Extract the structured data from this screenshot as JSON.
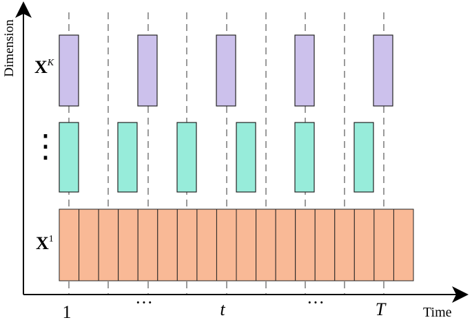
{
  "axes": {
    "y_label": "Dimension",
    "x_label": "Time"
  },
  "time_ticks": [
    "1",
    "···",
    "t",
    "···",
    "T"
  ],
  "rows": {
    "top": {
      "base": "X",
      "superscript": "K",
      "color": "#ccc1ec",
      "block_count": 5
    },
    "middle": {
      "label": "⋮",
      "color": "#97ecda",
      "block_count": 6
    },
    "bottom": {
      "base": "X",
      "superscript": "1",
      "color": "#f9b996",
      "block_count": 18
    }
  },
  "colors": {
    "axis": "#000000",
    "dashed_line": "#9a9a9a",
    "block_stroke": "#222222"
  }
}
